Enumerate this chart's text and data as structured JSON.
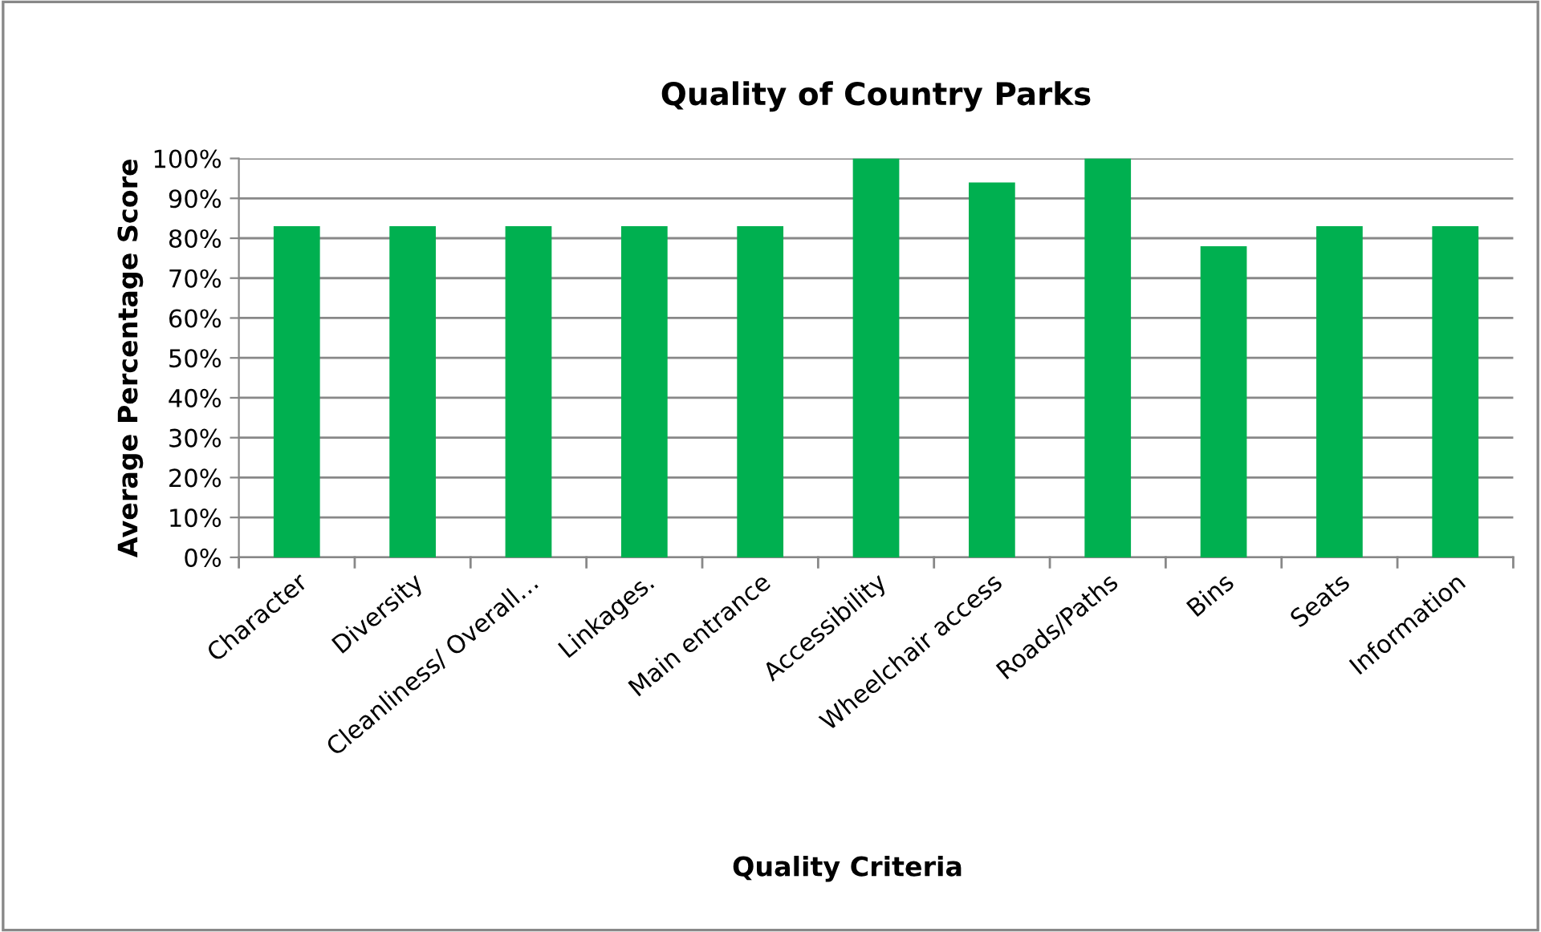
{
  "chart_data": {
    "type": "bar",
    "title": "Quality of Country Parks",
    "xlabel": "Quality Criteria",
    "ylabel": "Average Percentage Score",
    "categories": [
      "Character",
      "Diversity",
      "Cleanliness/ Overall…",
      "Linkages.",
      "Main entrance",
      "Accessibility",
      "Wheelchair access",
      "Roads/Paths",
      "Bins",
      "Seats",
      "Information"
    ],
    "values": [
      83,
      83,
      83,
      83,
      83,
      100,
      94,
      100,
      78,
      83,
      83
    ],
    "color": "#00b050",
    "ylim": [
      0,
      100
    ],
    "yticks": [
      {
        "value": 0,
        "label": "0%"
      },
      {
        "value": 10,
        "label": "10%"
      },
      {
        "value": 20,
        "label": "20%"
      },
      {
        "value": 30,
        "label": "30%"
      },
      {
        "value": 40,
        "label": "40%"
      },
      {
        "value": 50,
        "label": "50%"
      },
      {
        "value": 60,
        "label": "60%"
      },
      {
        "value": 70,
        "label": "70%"
      },
      {
        "value": 80,
        "label": "80%"
      },
      {
        "value": 90,
        "label": "90%"
      },
      {
        "value": 100,
        "label": "100%"
      }
    ],
    "grid": "y",
    "legend": false
  }
}
